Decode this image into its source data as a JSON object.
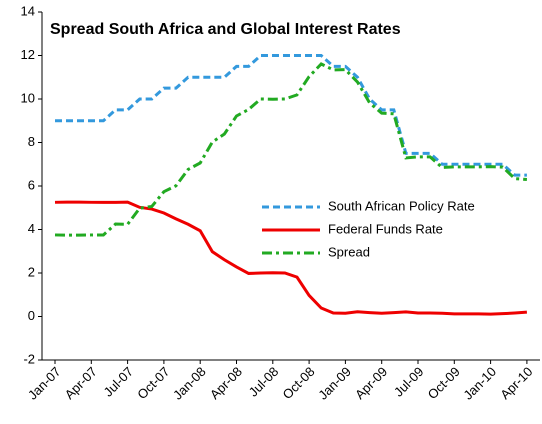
{
  "chart_data": {
    "type": "line",
    "title": "Spread South Africa and Global Interest Rates",
    "categories": [
      "Jan-07",
      null,
      null,
      "Apr-07",
      null,
      null,
      "Jul-07",
      null,
      null,
      "Oct-07",
      null,
      null,
      "Jan-08",
      null,
      null,
      "Apr-08",
      null,
      null,
      "Jul-08",
      null,
      null,
      "Oct-08",
      null,
      null,
      "Jan-09",
      null,
      null,
      "Apr-09",
      null,
      null,
      "Jul-09",
      null,
      null,
      "Oct-09",
      null,
      null,
      "Jan-10",
      null,
      null,
      "Apr-10"
    ],
    "series": [
      {
        "name": "South African Policy Rate",
        "color": "#3399dd",
        "dash": "dashed",
        "values": [
          9,
          9,
          9,
          9,
          9,
          9.5,
          9.5,
          10,
          10,
          10.5,
          10.5,
          11,
          11,
          11,
          11,
          11.5,
          11.5,
          12,
          12,
          12,
          12,
          12,
          12,
          11.5,
          11.5,
          11,
          10,
          9.5,
          9.5,
          7.5,
          7.5,
          7.5,
          7,
          7,
          7,
          7,
          7,
          7,
          6.5,
          6.5
        ]
      },
      {
        "name": "Federal Funds Rate",
        "color": "#ee0000",
        "dash": "solid",
        "values": [
          5.25,
          5.26,
          5.26,
          5.25,
          5.25,
          5.25,
          5.26,
          5.02,
          4.94,
          4.76,
          4.49,
          4.24,
          3.94,
          2.98,
          2.61,
          2.28,
          1.98,
          2.0,
          2.01,
          2.0,
          1.81,
          0.97,
          0.39,
          0.16,
          0.15,
          0.22,
          0.18,
          0.15,
          0.18,
          0.21,
          0.16,
          0.16,
          0.15,
          0.12,
          0.12,
          0.12,
          0.11,
          0.13,
          0.16,
          0.2
        ]
      },
      {
        "name": "Spread",
        "color": "#22aa22",
        "dash": "dashdot",
        "values": [
          3.75,
          3.74,
          3.74,
          3.75,
          3.75,
          4.25,
          4.24,
          4.98,
          5.06,
          5.74,
          6.01,
          6.76,
          7.06,
          8.02,
          8.39,
          9.22,
          9.52,
          10,
          9.99,
          10,
          10.19,
          11.03,
          11.61,
          11.34,
          11.35,
          10.78,
          9.82,
          9.35,
          9.32,
          7.29,
          7.34,
          7.34,
          6.85,
          6.88,
          6.88,
          6.88,
          6.89,
          6.87,
          6.34,
          6.3
        ]
      }
    ],
    "ylim": [
      -2,
      14
    ],
    "yticks": [
      -2,
      0,
      2,
      4,
      6,
      8,
      10,
      12,
      14
    ],
    "grid": false,
    "legend": "right"
  }
}
